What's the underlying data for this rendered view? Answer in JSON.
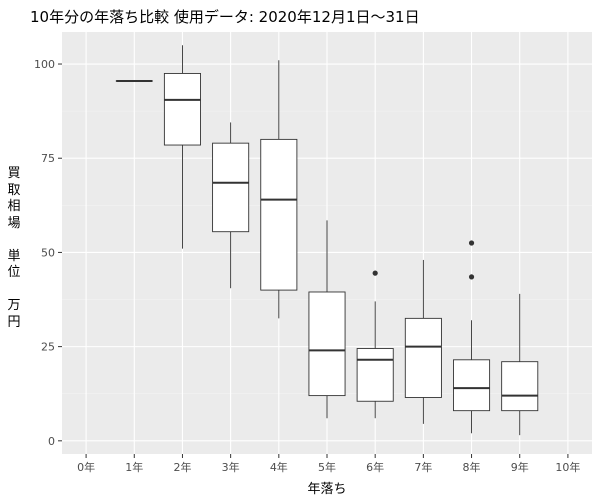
{
  "chart_data": {
    "type": "box",
    "title": "10年分の年落ち比較 使用データ: 2020年12月1日～31日",
    "xlabel": "年落ち",
    "ylabel": "買取相場 単位 万円",
    "ylabel_chars": [
      "買",
      "取",
      "相",
      "場",
      "",
      "単",
      "位",
      "",
      "万",
      "円"
    ],
    "categories": [
      "0年",
      "1年",
      "2年",
      "3年",
      "4年",
      "5年",
      "6年",
      "7年",
      "8年",
      "9年",
      "10年"
    ],
    "yticks": [
      0,
      25,
      50,
      75,
      100
    ],
    "ylim": [
      -3.5,
      108.5
    ],
    "grid": true,
    "boxes": [
      {
        "category": "1年",
        "min": 95.5,
        "q1": 95.5,
        "median": 95.5,
        "q3": 95.5,
        "max": 95.5,
        "outliers": []
      },
      {
        "category": "2年",
        "min": 51,
        "q1": 78.5,
        "median": 90.5,
        "q3": 97.5,
        "max": 105,
        "outliers": []
      },
      {
        "category": "3年",
        "min": 40.5,
        "q1": 55.5,
        "median": 68.5,
        "q3": 79,
        "max": 84.5,
        "outliers": []
      },
      {
        "category": "4年",
        "min": 32.5,
        "q1": 40,
        "median": 64,
        "q3": 80,
        "max": 101,
        "outliers": []
      },
      {
        "category": "5年",
        "min": 6,
        "q1": 12,
        "median": 24,
        "q3": 39.5,
        "max": 58.5,
        "outliers": []
      },
      {
        "category": "6年",
        "min": 6,
        "q1": 10.5,
        "median": 21.5,
        "q3": 24.5,
        "max": 37,
        "outliers": [
          44.5
        ]
      },
      {
        "category": "7年",
        "min": 4.5,
        "q1": 11.5,
        "median": 25,
        "q3": 32.5,
        "max": 48,
        "outliers": []
      },
      {
        "category": "8年",
        "min": 2,
        "q1": 8,
        "median": 14,
        "q3": 21.5,
        "max": 32,
        "outliers": [
          43.5,
          52.5
        ]
      },
      {
        "category": "9年",
        "min": 1.5,
        "q1": 8,
        "median": 12,
        "q3": 21,
        "max": 39,
        "outliers": []
      }
    ],
    "colors": {
      "panel": "#EBEBEB",
      "grid_major": "#FFFFFF",
      "grid_minor": "#F4F4F4",
      "box_fill": "#FFFFFF",
      "box_line": "#333333",
      "tick_text": "#4D4D4D"
    }
  }
}
